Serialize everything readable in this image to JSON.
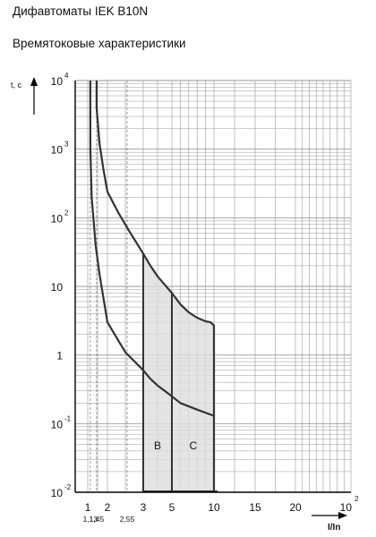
{
  "header": {
    "title": "Дифавтоматы IEK B10N",
    "subtitle": "Времятоковые характеристики"
  },
  "chart_data": {
    "type": "line",
    "title": "Дифавтоматы IEK B10N",
    "subtitle": "Времятоковые характеристики",
    "xlabel": "I/In",
    "ylabel": "t, c",
    "x_scale": "nonlinear",
    "y_scale": "log",
    "xlim": [
      0.8,
      100
    ],
    "ylim": [
      0.01,
      10000
    ],
    "grid": true,
    "x_ticks": [
      {
        "value": 1,
        "label": "1"
      },
      {
        "value": 2,
        "label": "2"
      },
      {
        "value": 3,
        "label": "3"
      },
      {
        "value": 5,
        "label": "5"
      },
      {
        "value": 10,
        "label": "10"
      },
      {
        "value": 15,
        "label": "15"
      },
      {
        "value": 20,
        "label": "20"
      },
      {
        "value": 100,
        "label": "10",
        "exponent": "2"
      }
    ],
    "x_sub_ticks": [
      {
        "value": 1.13,
        "label": "1,13"
      },
      {
        "value": 1.45,
        "label": "1,45"
      },
      {
        "value": 2.55,
        "label": "2,55"
      }
    ],
    "y_ticks": [
      {
        "value": 10000,
        "label": "10",
        "exponent": "4"
      },
      {
        "value": 1000,
        "label": "10",
        "exponent": "3"
      },
      {
        "value": 100,
        "label": "10",
        "exponent": "2"
      },
      {
        "value": 10,
        "label": "10"
      },
      {
        "value": 1,
        "label": "1"
      },
      {
        "value": 0.1,
        "label": "10",
        "exponent": "-1"
      },
      {
        "value": 0.01,
        "label": "10",
        "exponent": "-2"
      }
    ],
    "series": [
      {
        "curve": "upper",
        "x": [
          1.45,
          1.45,
          1.6,
          1.8,
          2.0,
          2.3,
          2.6,
          3.0,
          3.5,
          4.0,
          5.0,
          6.0,
          7.0,
          8.0,
          9.0,
          9.6,
          10.0,
          10.0
        ],
        "y": [
          10000,
          4000,
          1200,
          500,
          240,
          120,
          65,
          30,
          20,
          14,
          8,
          5.5,
          4.2,
          3.5,
          3.1,
          3.0,
          2.7,
          0.01
        ]
      },
      {
        "curve": "lower",
        "x": [
          1.13,
          1.13,
          1.2,
          1.4,
          1.6,
          2.0,
          2.5,
          3.0,
          3.5,
          4.0,
          5.0,
          6.0,
          8.0,
          10.0
        ],
        "y": [
          10000,
          1000,
          200,
          40,
          15,
          3,
          1.1,
          0.6,
          0.45,
          0.36,
          0.25,
          0.2,
          0.16,
          0.13
        ]
      }
    ],
    "regions": [
      {
        "label": "B",
        "x_from": 3,
        "x_to": 5
      },
      {
        "label": "C",
        "x_from": 5,
        "x_to": 10
      }
    ],
    "colors": {
      "grid": "#999999",
      "curve": "#333333",
      "region_fill": "#dddddd",
      "axis": "#000000"
    }
  }
}
